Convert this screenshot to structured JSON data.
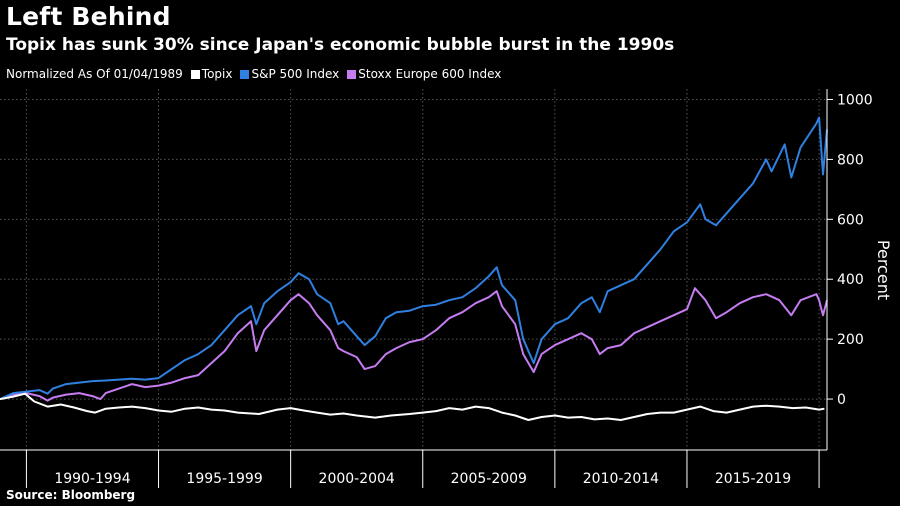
{
  "header": {
    "title": "Left Behind",
    "subtitle": "Topix has sunk 30% since Japan's economic bubble burst in the 1990s",
    "note": "Normalized As Of 01/04/1989"
  },
  "footer": {
    "source": "Source: Bloomberg"
  },
  "colors": {
    "background": "#000000",
    "grid": "#555555",
    "topix": "#ffffff",
    "sp500": "#2f80e0",
    "stoxx": "#c57cf0"
  },
  "chart_data": {
    "type": "line",
    "ylabel": "Percent",
    "ylim": [
      -170,
      1035
    ],
    "yticks": [
      0,
      200,
      400,
      600,
      800,
      1000
    ],
    "xlim": [
      1989.0,
      2020.3
    ],
    "x_groups": [
      {
        "label": "1990-1994",
        "start": 1990.0,
        "end": 1995.0
      },
      {
        "label": "1995-1999",
        "start": 1995.0,
        "end": 2000.0
      },
      {
        "label": "2000-2004",
        "start": 2000.0,
        "end": 2005.0
      },
      {
        "label": "2005-2009",
        "start": 2005.0,
        "end": 2010.0
      },
      {
        "label": "2010-2014",
        "start": 2010.0,
        "end": 2015.0
      },
      {
        "label": "2015-2019",
        "start": 2015.0,
        "end": 2020.0
      }
    ],
    "grid": true,
    "legend_position": "top-left",
    "series": [
      {
        "name": "Topix",
        "color": "#ffffff",
        "x": [
          1989.0,
          1989.5,
          1989.95,
          1990.3,
          1990.8,
          1991.3,
          1991.8,
          1992.3,
          1992.6,
          1993.0,
          1993.5,
          1994.0,
          1994.5,
          1995.0,
          1995.5,
          1996.0,
          1996.5,
          1997.0,
          1997.5,
          1998.0,
          1998.8,
          1999.5,
          2000.0,
          2000.5,
          2001.0,
          2001.5,
          2002.0,
          2002.5,
          2003.2,
          2003.8,
          2004.5,
          2005.0,
          2005.5,
          2006.0,
          2006.5,
          2007.0,
          2007.5,
          2008.0,
          2008.5,
          2009.0,
          2009.5,
          2010.0,
          2010.5,
          2011.0,
          2011.5,
          2012.0,
          2012.5,
          2013.0,
          2013.5,
          2014.0,
          2014.5,
          2015.0,
          2015.5,
          2016.0,
          2016.5,
          2017.0,
          2017.5,
          2018.0,
          2018.5,
          2019.0,
          2019.5,
          2020.0,
          2020.2
        ],
        "values": [
          0,
          8,
          18,
          -8,
          -25,
          -18,
          -28,
          -40,
          -45,
          -32,
          -28,
          -25,
          -30,
          -38,
          -42,
          -32,
          -28,
          -35,
          -38,
          -45,
          -50,
          -35,
          -30,
          -38,
          -45,
          -52,
          -48,
          -55,
          -62,
          -55,
          -50,
          -45,
          -40,
          -30,
          -35,
          -25,
          -30,
          -45,
          -55,
          -70,
          -60,
          -55,
          -62,
          -60,
          -68,
          -65,
          -70,
          -60,
          -50,
          -45,
          -45,
          -35,
          -25,
          -40,
          -45,
          -35,
          -25,
          -22,
          -25,
          -30,
          -28,
          -35,
          -32
        ]
      },
      {
        "name": "S&P 500 Index",
        "color": "#2f80e0",
        "x": [
          1989.0,
          1989.5,
          1990.0,
          1990.5,
          1990.8,
          1991.0,
          1991.5,
          1992.0,
          1992.5,
          1993.0,
          1993.5,
          1994.0,
          1994.5,
          1995.0,
          1995.5,
          1996.0,
          1996.5,
          1997.0,
          1997.5,
          1998.0,
          1998.5,
          1998.7,
          1999.0,
          1999.5,
          2000.0,
          2000.3,
          2000.7,
          2001.0,
          2001.5,
          2001.8,
          2002.0,
          2002.5,
          2002.8,
          2003.2,
          2003.6,
          2004.0,
          2004.5,
          2005.0,
          2005.5,
          2006.0,
          2006.5,
          2007.0,
          2007.5,
          2007.8,
          2008.0,
          2008.5,
          2008.8,
          2009.2,
          2009.5,
          2010.0,
          2010.5,
          2011.0,
          2011.4,
          2011.7,
          2012.0,
          2012.5,
          2013.0,
          2013.5,
          2014.0,
          2014.5,
          2015.0,
          2015.5,
          2015.7,
          2016.1,
          2016.5,
          2017.0,
          2017.5,
          2018.0,
          2018.2,
          2018.7,
          2018.95,
          2019.3,
          2019.6,
          2019.9,
          2020.0,
          2020.15,
          2020.3
        ],
        "values": [
          0,
          20,
          25,
          30,
          18,
          35,
          50,
          55,
          60,
          62,
          65,
          68,
          65,
          70,
          100,
          130,
          150,
          180,
          230,
          280,
          310,
          250,
          320,
          360,
          390,
          420,
          400,
          350,
          320,
          250,
          260,
          210,
          180,
          210,
          270,
          290,
          295,
          310,
          315,
          330,
          340,
          370,
          410,
          440,
          380,
          330,
          200,
          120,
          200,
          250,
          270,
          320,
          340,
          290,
          360,
          380,
          400,
          450,
          500,
          560,
          590,
          650,
          600,
          580,
          620,
          670,
          720,
          800,
          760,
          850,
          740,
          840,
          880,
          920,
          940,
          750,
          900
        ]
      },
      {
        "name": "Stoxx Europe 600 Index",
        "color": "#c57cf0",
        "x": [
          1989.0,
          1989.5,
          1990.0,
          1990.5,
          1990.8,
          1991.0,
          1991.5,
          1992.0,
          1992.5,
          1992.8,
          1993.0,
          1993.5,
          1994.0,
          1994.5,
          1995.0,
          1995.5,
          1996.0,
          1996.5,
          1997.0,
          1997.5,
          1998.0,
          1998.5,
          1998.7,
          1999.0,
          1999.5,
          2000.0,
          2000.3,
          2000.7,
          2001.0,
          2001.5,
          2001.8,
          2002.0,
          2002.5,
          2002.8,
          2003.2,
          2003.6,
          2004.0,
          2004.5,
          2005.0,
          2005.5,
          2006.0,
          2006.5,
          2007.0,
          2007.5,
          2007.8,
          2008.0,
          2008.5,
          2008.8,
          2009.2,
          2009.5,
          2010.0,
          2010.5,
          2011.0,
          2011.4,
          2011.7,
          2012.0,
          2012.5,
          2013.0,
          2013.5,
          2014.0,
          2014.5,
          2015.0,
          2015.3,
          2015.7,
          2016.1,
          2016.5,
          2017.0,
          2017.5,
          2018.0,
          2018.5,
          2018.95,
          2019.3,
          2019.6,
          2019.9,
          2020.0,
          2020.15,
          2020.3
        ],
        "values": [
          0,
          15,
          20,
          10,
          -5,
          5,
          15,
          20,
          10,
          0,
          20,
          35,
          50,
          40,
          45,
          55,
          70,
          80,
          120,
          160,
          220,
          260,
          160,
          230,
          280,
          330,
          350,
          320,
          280,
          230,
          170,
          160,
          140,
          100,
          110,
          150,
          170,
          190,
          200,
          230,
          270,
          290,
          320,
          340,
          360,
          310,
          250,
          150,
          90,
          150,
          180,
          200,
          220,
          200,
          150,
          170,
          180,
          220,
          240,
          260,
          280,
          300,
          370,
          330,
          270,
          290,
          320,
          340,
          350,
          330,
          280,
          330,
          340,
          350,
          330,
          280,
          330
        ]
      }
    ]
  }
}
